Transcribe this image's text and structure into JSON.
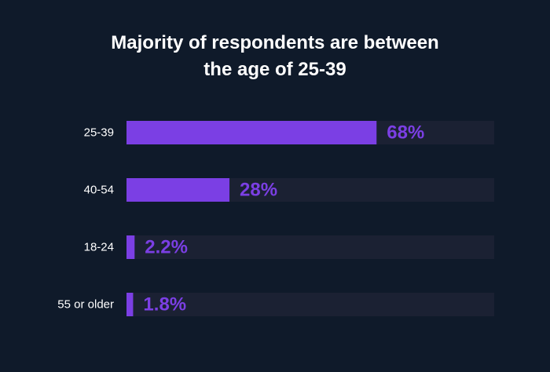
{
  "chart_data": {
    "type": "bar",
    "orientation": "horizontal",
    "title_lines": [
      "Majority of respondents are between",
      "the age of 25-39"
    ],
    "categories": [
      "25-39",
      "40-54",
      "18-24",
      "55 or older"
    ],
    "values": [
      68,
      28,
      2.2,
      1.8
    ],
    "value_labels": [
      "68%",
      "28%",
      "2.2%",
      "1.8%"
    ],
    "xlim": [
      0,
      100
    ],
    "grid": false,
    "legend": "none"
  },
  "colors": {
    "background": "#0f1a2a",
    "track": "#1b2133",
    "bar": "#7b3fe4",
    "title": "#ffffff",
    "category_label": "#ffffff",
    "value_label": "#7b3fe4"
  }
}
